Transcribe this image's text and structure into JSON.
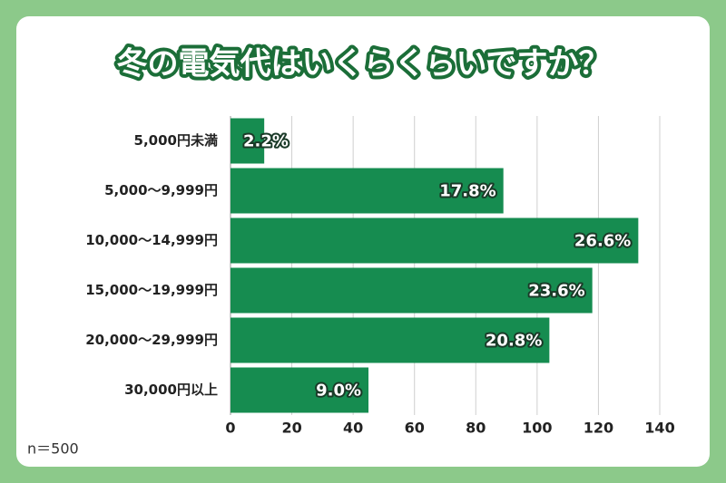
{
  "chart_data": {
    "type": "hbar",
    "title": "冬の電気代はいくらくらいですか？",
    "categories": [
      "5,000円未満",
      "5,000〜9,999円",
      "10,000〜14,999円",
      "15,000〜19,999円",
      "20,000〜29,999円",
      "30,000円以上"
    ],
    "values": [
      11,
      89,
      133,
      118,
      104,
      45
    ],
    "value_labels": [
      "2.2%",
      "17.8%",
      "26.6%",
      "23.6%",
      "20.8%",
      "9.0%"
    ],
    "color": "#168c50",
    "xlim": [
      0,
      140
    ],
    "xticks": [
      0,
      20,
      40,
      60,
      80,
      100,
      120,
      140
    ],
    "grid": true,
    "note": "n＝500"
  }
}
